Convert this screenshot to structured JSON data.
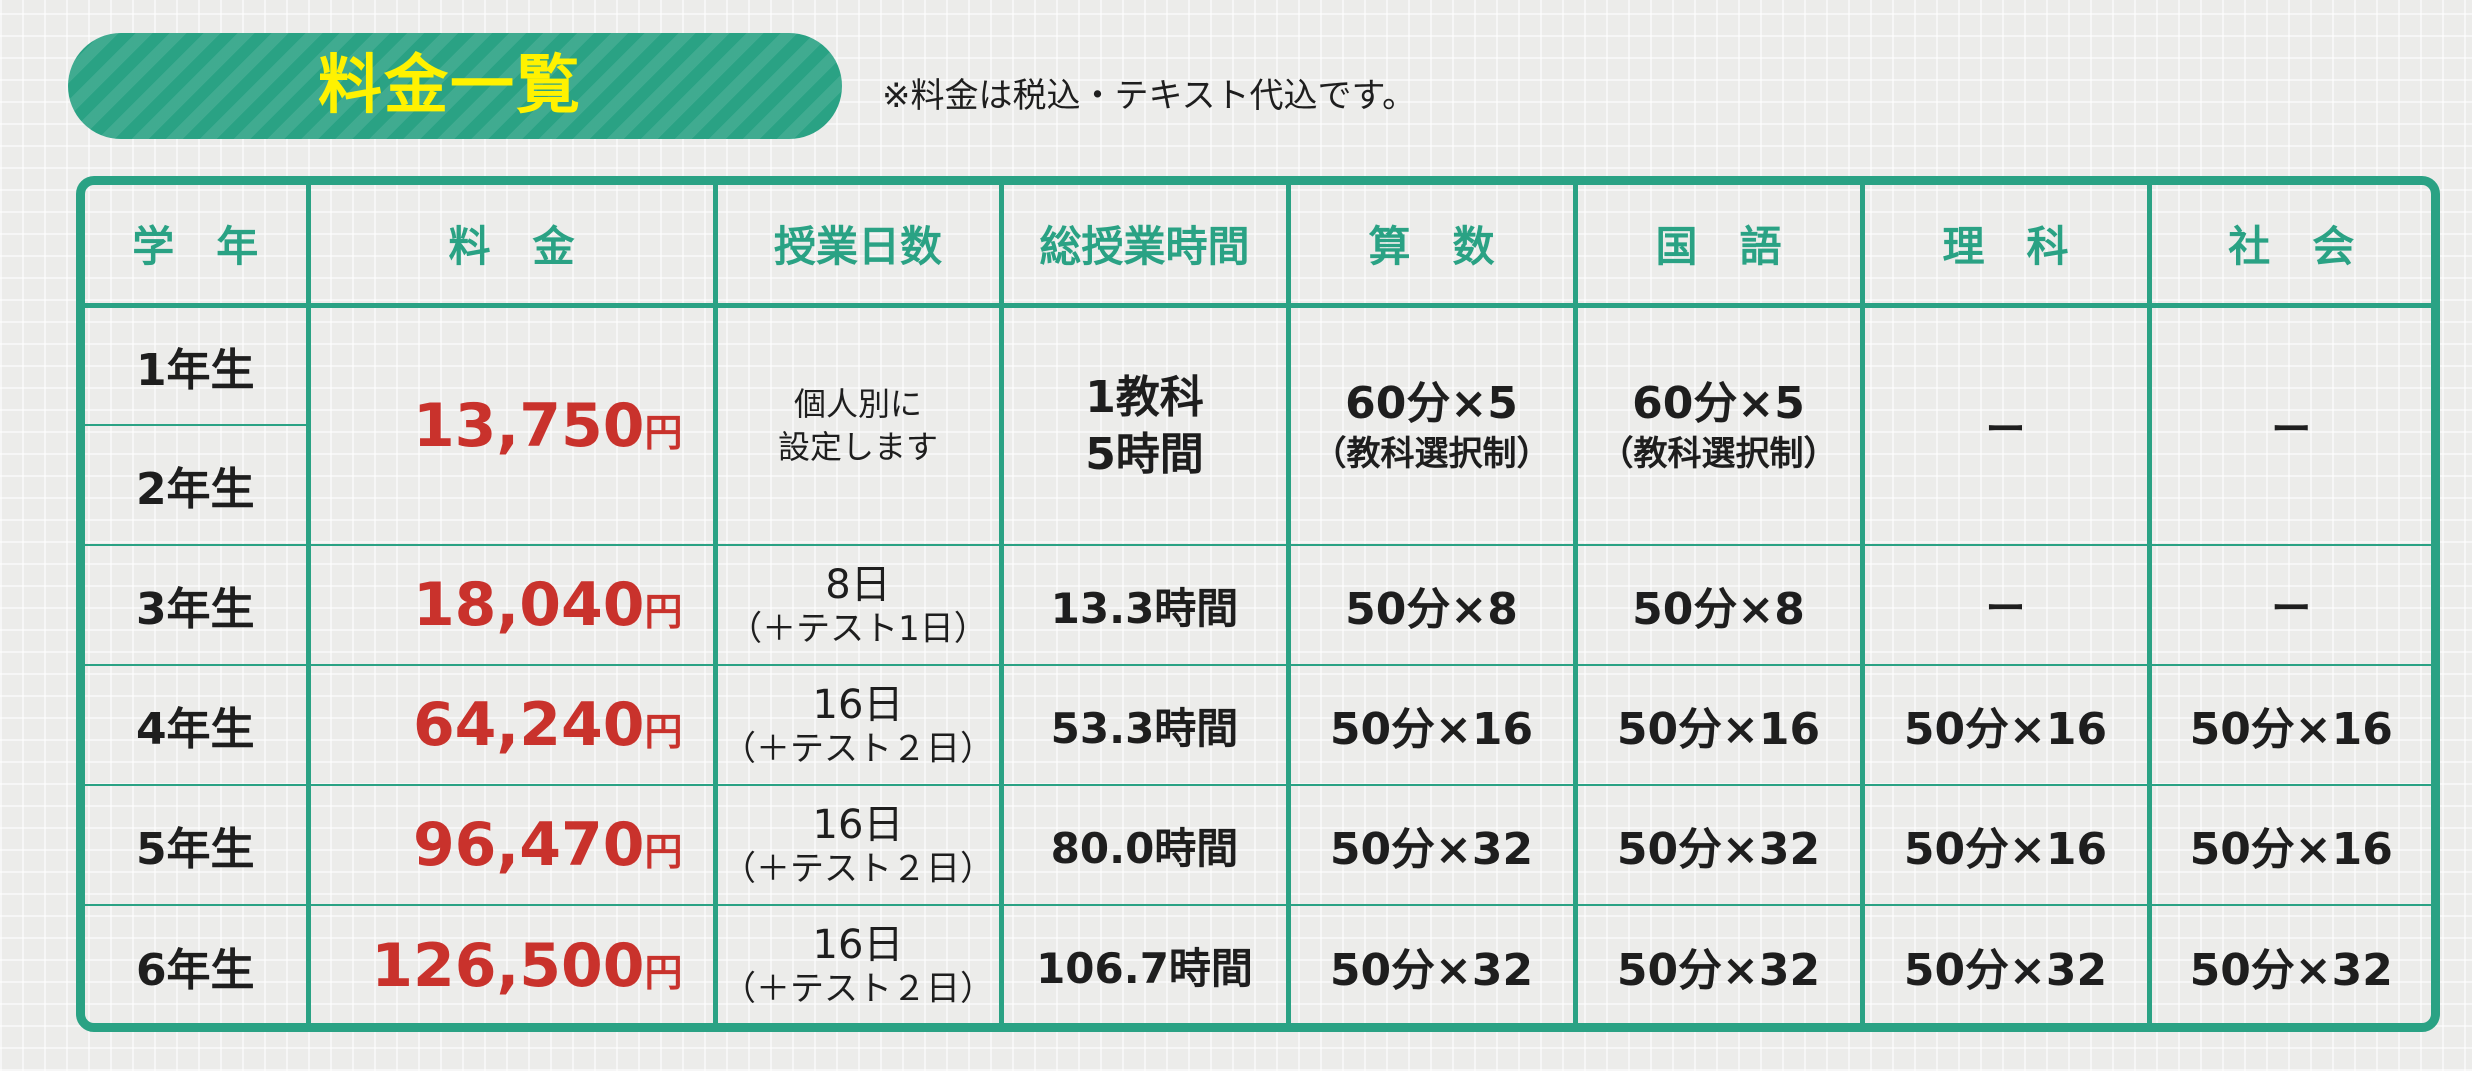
{
  "title": "料金一覧",
  "note": "※料金は税込・テキスト代込です。",
  "colors": {
    "accent": "#2aa284",
    "title_text": "#fff200",
    "price": "#c9322c",
    "text": "#1e1e1e"
  },
  "headers": [
    "学　年",
    "料　金",
    "授業日数",
    "総授業時間",
    "算　数",
    "国　語",
    "理　科",
    "社　会"
  ],
  "rows": [
    {
      "grades": [
        "1年生",
        "2年生"
      ],
      "price": "13,750",
      "yen": "円",
      "days_lines": [
        "個人別に",
        "設定します"
      ],
      "hours_lines": [
        "1教科",
        "5時間"
      ],
      "math": [
        "60分×5",
        "（教科選択制）"
      ],
      "japanese": [
        "60分×5",
        "（教科選択制）"
      ],
      "science": "ー",
      "social": "ー"
    },
    {
      "grade": "3年生",
      "price": "18,040",
      "yen": "円",
      "days": "8日",
      "days_sub": "（＋テスト1日）",
      "hours": "13.3時間",
      "math": "50分×8",
      "japanese": "50分×8",
      "science": "ー",
      "social": "ー"
    },
    {
      "grade": "4年生",
      "price": "64,240",
      "yen": "円",
      "days": "16日",
      "days_sub": "（＋テスト２日）",
      "hours": "53.3時間",
      "math": "50分×16",
      "japanese": "50分×16",
      "science": "50分×16",
      "social": "50分×16"
    },
    {
      "grade": "5年生",
      "price": "96,470",
      "yen": "円",
      "days": "16日",
      "days_sub": "（＋テスト２日）",
      "hours": "80.0時間",
      "math": "50分×32",
      "japanese": "50分×32",
      "science": "50分×16",
      "social": "50分×16"
    },
    {
      "grade": "6年生",
      "price": "126,500",
      "yen": "円",
      "days": "16日",
      "days_sub": "（＋テスト２日）",
      "hours": "106.7時間",
      "math": "50分×32",
      "japanese": "50分×32",
      "science": "50分×32",
      "social": "50分×32"
    }
  ]
}
